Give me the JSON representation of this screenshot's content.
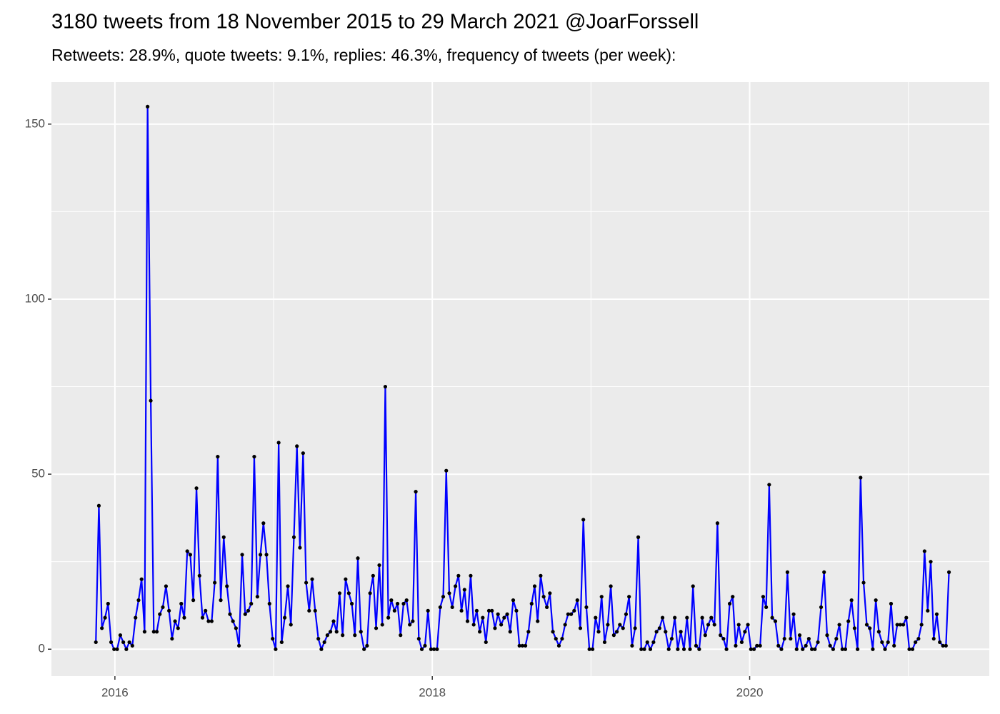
{
  "chart_data": {
    "type": "line",
    "title": "3180 tweets from 18 November 2015 to 29 March 2021 @JoarForssell",
    "subtitle": "Retweets: 28.9%, quote tweets: 9.1%, replies: 46.3%, frequency of tweets (per week):",
    "x": [
      2015.88,
      2015.899,
      2015.918,
      2015.938,
      2015.957,
      2015.976,
      2015.995,
      2016.014,
      2016.034,
      2016.053,
      2016.072,
      2016.091,
      2016.11,
      2016.13,
      2016.149,
      2016.168,
      2016.187,
      2016.206,
      2016.226,
      2016.245,
      2016.264,
      2016.283,
      2016.302,
      2016.322,
      2016.341,
      2016.36,
      2016.379,
      2016.398,
      2016.418,
      2016.437,
      2016.456,
      2016.475,
      2016.494,
      2016.514,
      2016.533,
      2016.552,
      2016.571,
      2016.59,
      2016.61,
      2016.629,
      2016.648,
      2016.667,
      2016.686,
      2016.706,
      2016.725,
      2016.744,
      2016.763,
      2016.782,
      2016.802,
      2016.821,
      2016.84,
      2016.859,
      2016.878,
      2016.898,
      2016.917,
      2016.936,
      2016.955,
      2016.974,
      2016.994,
      2017.013,
      2017.032,
      2017.051,
      2017.07,
      2017.09,
      2017.109,
      2017.128,
      2017.147,
      2017.166,
      2017.186,
      2017.205,
      2017.224,
      2017.243,
      2017.262,
      2017.282,
      2017.301,
      2017.32,
      2017.339,
      2017.358,
      2017.378,
      2017.397,
      2017.416,
      2017.435,
      2017.454,
      2017.474,
      2017.493,
      2017.512,
      2017.531,
      2017.55,
      2017.57,
      2017.589,
      2017.608,
      2017.627,
      2017.646,
      2017.666,
      2017.685,
      2017.704,
      2017.723,
      2017.742,
      2017.762,
      2017.781,
      2017.8,
      2017.819,
      2017.838,
      2017.858,
      2017.877,
      2017.896,
      2017.915,
      2017.934,
      2017.954,
      2017.973,
      2017.992,
      2018.011,
      2018.03,
      2018.05,
      2018.069,
      2018.088,
      2018.107,
      2018.126,
      2018.146,
      2018.165,
      2018.184,
      2018.203,
      2018.222,
      2018.242,
      2018.261,
      2018.28,
      2018.299,
      2018.318,
      2018.338,
      2018.357,
      2018.376,
      2018.395,
      2018.414,
      2018.434,
      2018.453,
      2018.472,
      2018.491,
      2018.51,
      2018.53,
      2018.549,
      2018.568,
      2018.587,
      2018.606,
      2018.626,
      2018.645,
      2018.664,
      2018.683,
      2018.702,
      2018.722,
      2018.741,
      2018.76,
      2018.779,
      2018.798,
      2018.818,
      2018.837,
      2018.856,
      2018.875,
      2018.894,
      2018.914,
      2018.933,
      2018.952,
      2018.971,
      2018.99,
      2019.01,
      2019.029,
      2019.048,
      2019.067,
      2019.086,
      2019.106,
      2019.125,
      2019.144,
      2019.163,
      2019.182,
      2019.202,
      2019.221,
      2019.24,
      2019.259,
      2019.278,
      2019.298,
      2019.317,
      2019.336,
      2019.355,
      2019.374,
      2019.394,
      2019.413,
      2019.432,
      2019.451,
      2019.47,
      2019.49,
      2019.509,
      2019.528,
      2019.547,
      2019.566,
      2019.586,
      2019.605,
      2019.624,
      2019.643,
      2019.662,
      2019.682,
      2019.701,
      2019.72,
      2019.739,
      2019.758,
      2019.778,
      2019.797,
      2019.816,
      2019.835,
      2019.854,
      2019.874,
      2019.893,
      2019.912,
      2019.931,
      2019.95,
      2019.97,
      2019.989,
      2020.008,
      2020.027,
      2020.046,
      2020.066,
      2020.085,
      2020.104,
      2020.123,
      2020.142,
      2020.162,
      2020.181,
      2020.2,
      2020.219,
      2020.238,
      2020.258,
      2020.277,
      2020.296,
      2020.315,
      2020.334,
      2020.354,
      2020.373,
      2020.392,
      2020.411,
      2020.43,
      2020.45,
      2020.469,
      2020.488,
      2020.507,
      2020.526,
      2020.546,
      2020.565,
      2020.584,
      2020.603,
      2020.622,
      2020.642,
      2020.661,
      2020.68,
      2020.699,
      2020.718,
      2020.738,
      2020.757,
      2020.776,
      2020.795,
      2020.814,
      2020.834,
      2020.853,
      2020.872,
      2020.891,
      2020.91,
      2020.93,
      2020.949,
      2020.968,
      2020.987,
      2021.006,
      2021.026,
      2021.045,
      2021.064,
      2021.083,
      2021.102,
      2021.122,
      2021.141,
      2021.16,
      2021.179,
      2021.198,
      2021.218,
      2021.237,
      2021.256
    ],
    "values": [
      2,
      41,
      6,
      9,
      13,
      2,
      0,
      0,
      4,
      2,
      0,
      2,
      1,
      9,
      14,
      20,
      5,
      155,
      71,
      5,
      5,
      10,
      12,
      18,
      11,
      3,
      8,
      6,
      13,
      9,
      28,
      27,
      14,
      46,
      21,
      9,
      11,
      8,
      8,
      19,
      55,
      14,
      32,
      18,
      10,
      8,
      6,
      1,
      27,
      10,
      11,
      13,
      55,
      15,
      27,
      36,
      27,
      13,
      3,
      0,
      59,
      2,
      9,
      18,
      7,
      32,
      58,
      29,
      56,
      19,
      11,
      20,
      11,
      3,
      0,
      2,
      4,
      5,
      8,
      5,
      16,
      4,
      20,
      16,
      13,
      4,
      26,
      5,
      0,
      1,
      16,
      21,
      6,
      24,
      7,
      75,
      9,
      14,
      11,
      13,
      4,
      13,
      14,
      7,
      8,
      45,
      3,
      0,
      1,
      11,
      0,
      0,
      0,
      12,
      15,
      51,
      16,
      12,
      18,
      21,
      11,
      17,
      8,
      21,
      7,
      11,
      5,
      9,
      2,
      11,
      11,
      6,
      10,
      7,
      9,
      10,
      5,
      14,
      11,
      1,
      1,
      1,
      5,
      13,
      18,
      8,
      21,
      15,
      12,
      16,
      5,
      3,
      1,
      3,
      7,
      10,
      10,
      11,
      14,
      6,
      37,
      12,
      0,
      0,
      9,
      5,
      15,
      2,
      7,
      18,
      4,
      5,
      7,
      6,
      10,
      15,
      1,
      6,
      32,
      0,
      0,
      2,
      0,
      2,
      5,
      6,
      9,
      5,
      0,
      3,
      9,
      0,
      5,
      0,
      9,
      0,
      18,
      1,
      0,
      9,
      4,
      7,
      9,
      7,
      36,
      4,
      3,
      0,
      13,
      15,
      1,
      7,
      2,
      5,
      7,
      0,
      0,
      1,
      1,
      15,
      12,
      47,
      9,
      8,
      1,
      0,
      3,
      22,
      3,
      10,
      0,
      4,
      0,
      1,
      3,
      0,
      0,
      2,
      12,
      22,
      4,
      1,
      0,
      3,
      7,
      0,
      0,
      8,
      14,
      6,
      0,
      49,
      19,
      7,
      6,
      0,
      14,
      5,
      2,
      0,
      2,
      13,
      1,
      7,
      7,
      7,
      9,
      0,
      0,
      2,
      3,
      7,
      28,
      11,
      25,
      3,
      10,
      2,
      1,
      1,
      22
    ],
    "color": "#0000ff",
    "point_color": "#000000",
    "xlim": [
      2015.6,
      2021.51
    ],
    "xticks": [
      2016,
      2018,
      2020
    ],
    "ylim": [
      -7.7,
      162
    ],
    "yticks": [
      0,
      50,
      100,
      150
    ],
    "grid": true
  }
}
